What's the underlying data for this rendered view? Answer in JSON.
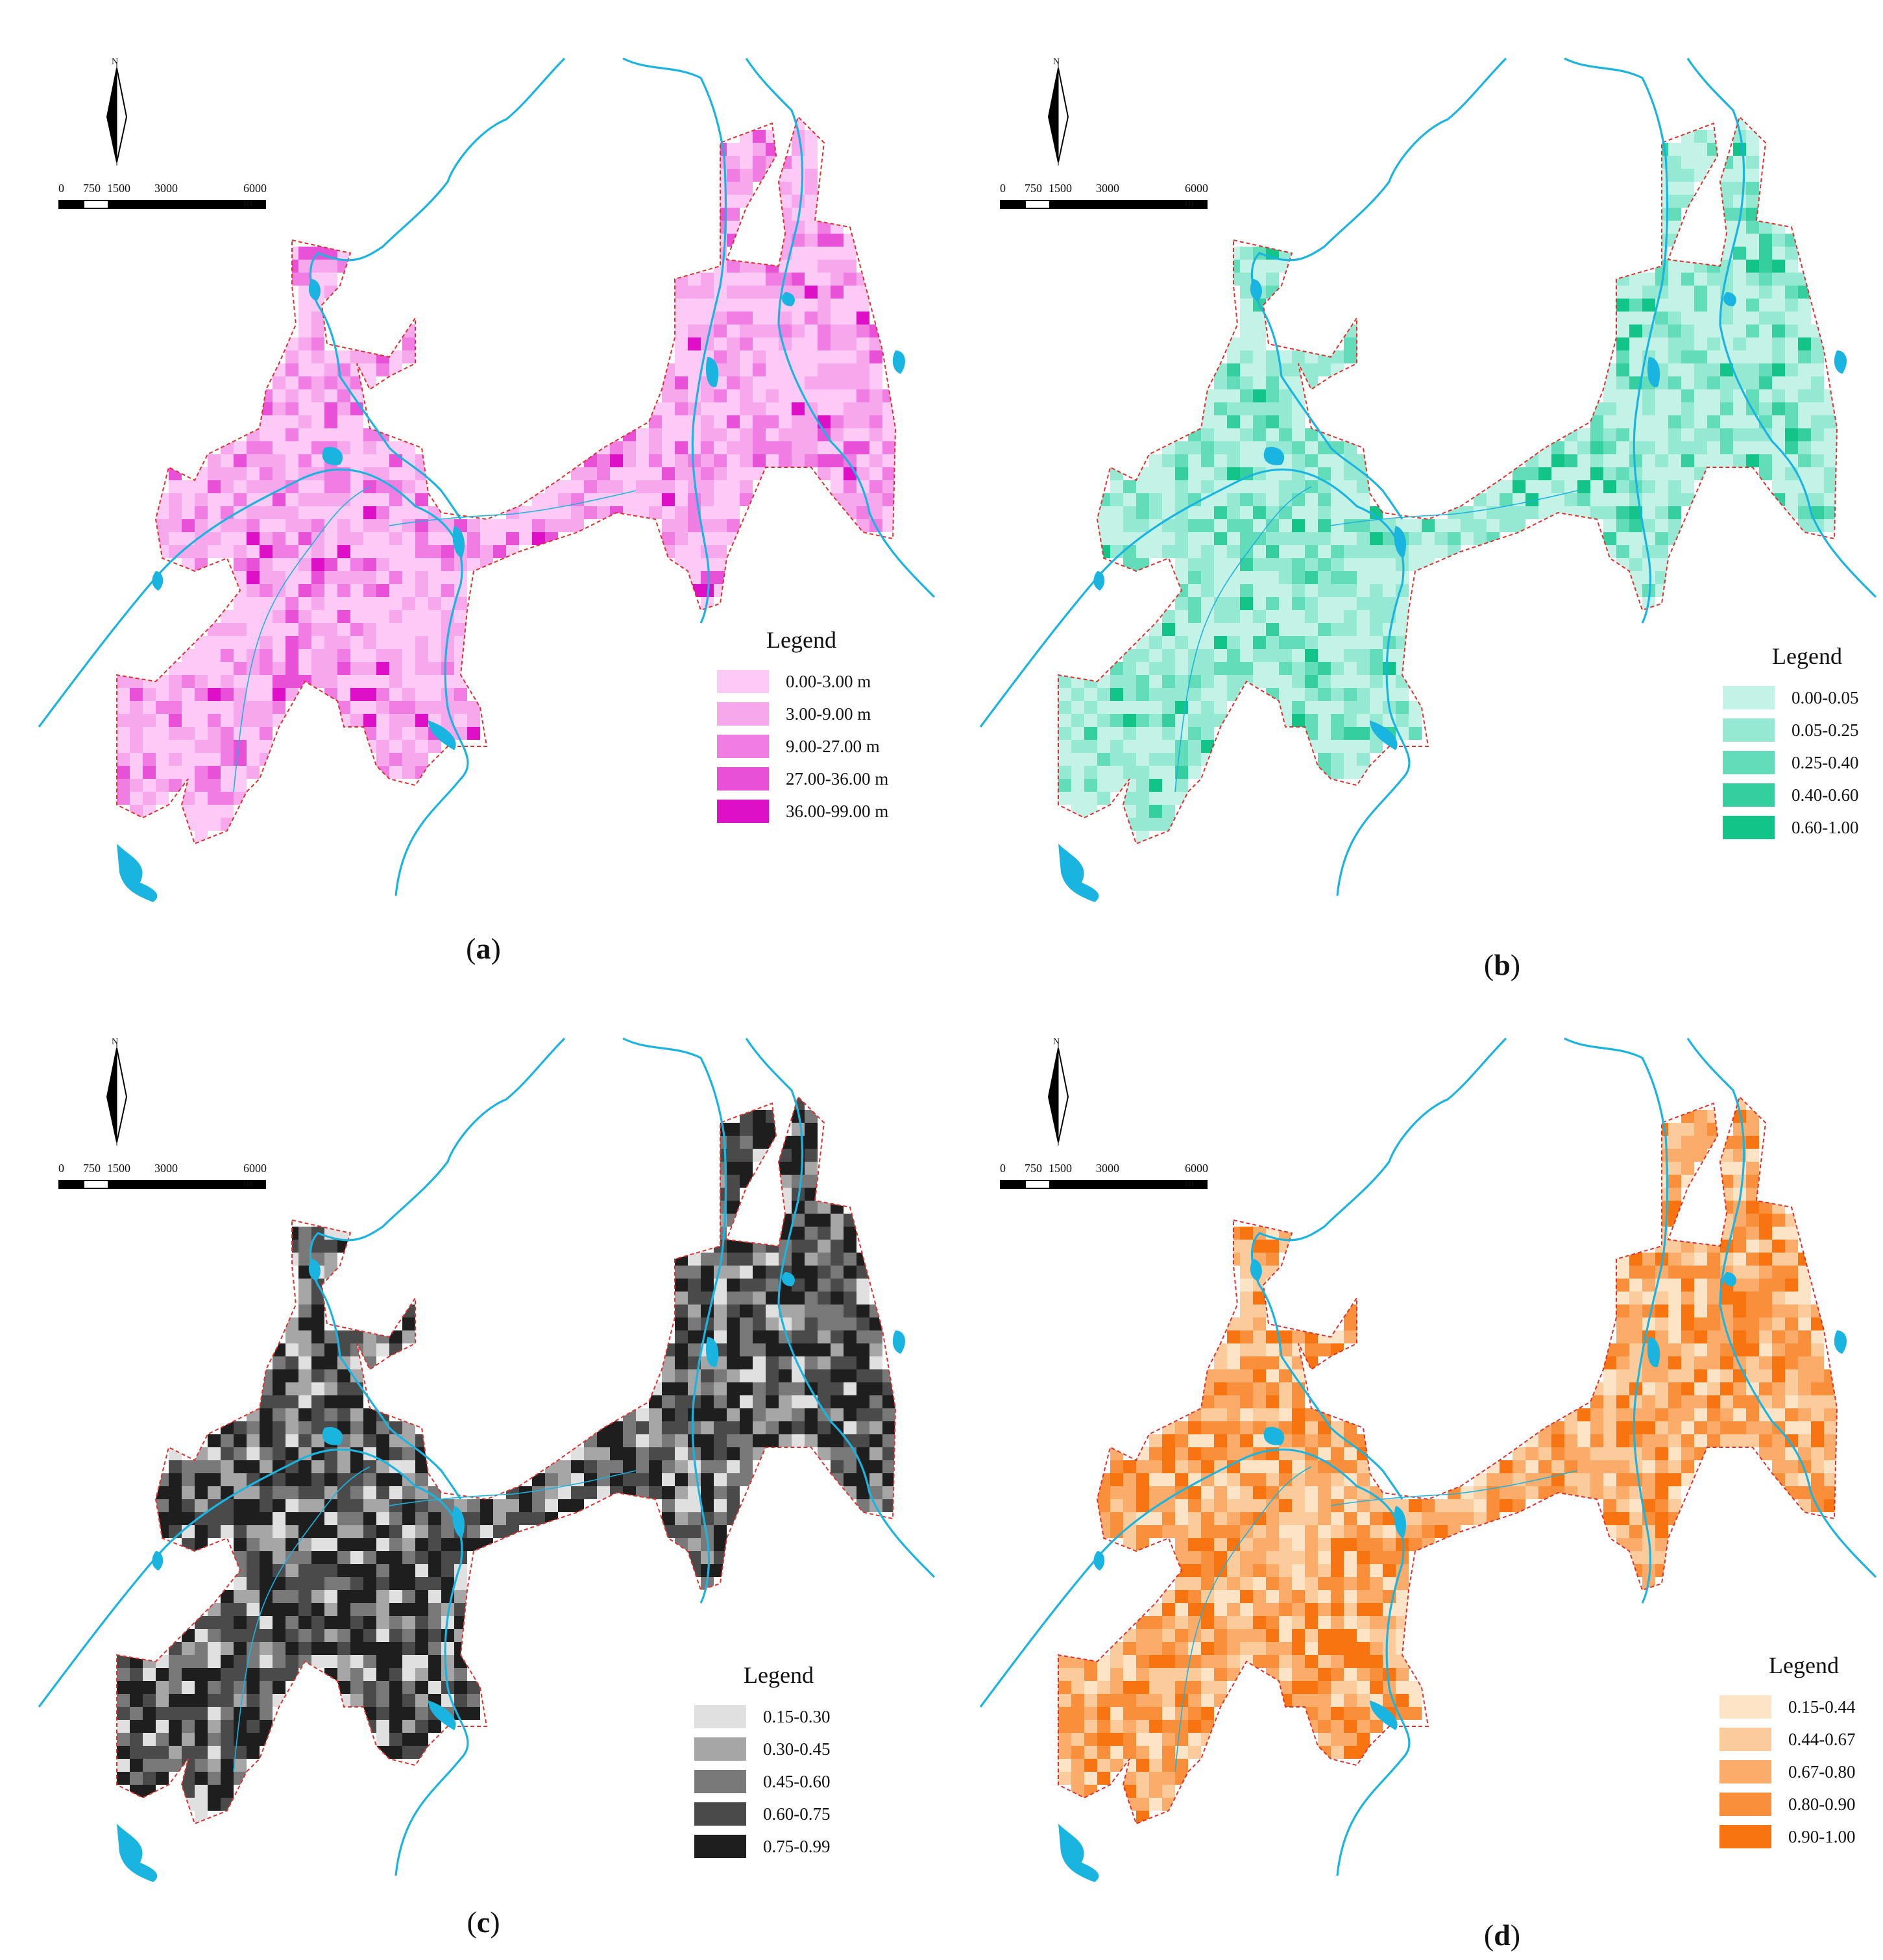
{
  "scale_labels": [
    "0",
    "750",
    "1500",
    "3000",
    "6000 m"
  ],
  "north_label": "N",
  "river_color": "#1ab4e0",
  "boundary_color": "#e0302c",
  "panels": [
    {
      "id": "a",
      "caption_open": "(",
      "caption_letter": "a",
      "caption_close": ")",
      "legend_title": "Legend",
      "classes": [
        {
          "label": "0.00-3.00 m",
          "color": "#fccaf4"
        },
        {
          "label": "3.00-9.00 m",
          "color": "#f7a8ec"
        },
        {
          "label": "9.00-27.00 m",
          "color": "#f07de1"
        },
        {
          "label": "27.00-36.00 m",
          "color": "#e851d7"
        },
        {
          "label": "36.00-99.00 m",
          "color": "#dd10c8"
        }
      ]
    },
    {
      "id": "b",
      "caption_open": "(",
      "caption_letter": "b",
      "caption_close": ")",
      "legend_title": "Legend",
      "classes": [
        {
          "label": "0.00-0.05",
          "color": "#c3f2e6"
        },
        {
          "label": "0.05-0.25",
          "color": "#95e8d1"
        },
        {
          "label": "0.25-0.40",
          "color": "#63dcb9"
        },
        {
          "label": "0.40-0.60",
          "color": "#35cf9f"
        },
        {
          "label": "0.60-1.00",
          "color": "#12c488"
        }
      ]
    },
    {
      "id": "c",
      "caption_open": "(",
      "caption_letter": "c",
      "caption_close": ")",
      "legend_title": "Legend",
      "classes": [
        {
          "label": "0.15-0.30",
          "color": "#e0e0e0"
        },
        {
          "label": "0.30-0.45",
          "color": "#a6a6a6"
        },
        {
          "label": "0.45-0.60",
          "color": "#797979"
        },
        {
          "label": "0.60-0.75",
          "color": "#4a4a4a"
        },
        {
          "label": "0.75-0.99",
          "color": "#1e1e1e"
        }
      ]
    },
    {
      "id": "d",
      "caption_open": "(",
      "caption_letter": "d",
      "caption_close": ")",
      "legend_title": "Legend",
      "classes": [
        {
          "label": "0.15-0.44",
          "color": "#fde4c6"
        },
        {
          "label": "0.44-0.67",
          "color": "#fccb9c"
        },
        {
          "label": "0.67-0.80",
          "color": "#fbac6a"
        },
        {
          "label": "0.80-0.90",
          "color": "#f98f3a"
        },
        {
          "label": "0.90-1.00",
          "color": "#f77410"
        }
      ]
    }
  ]
}
